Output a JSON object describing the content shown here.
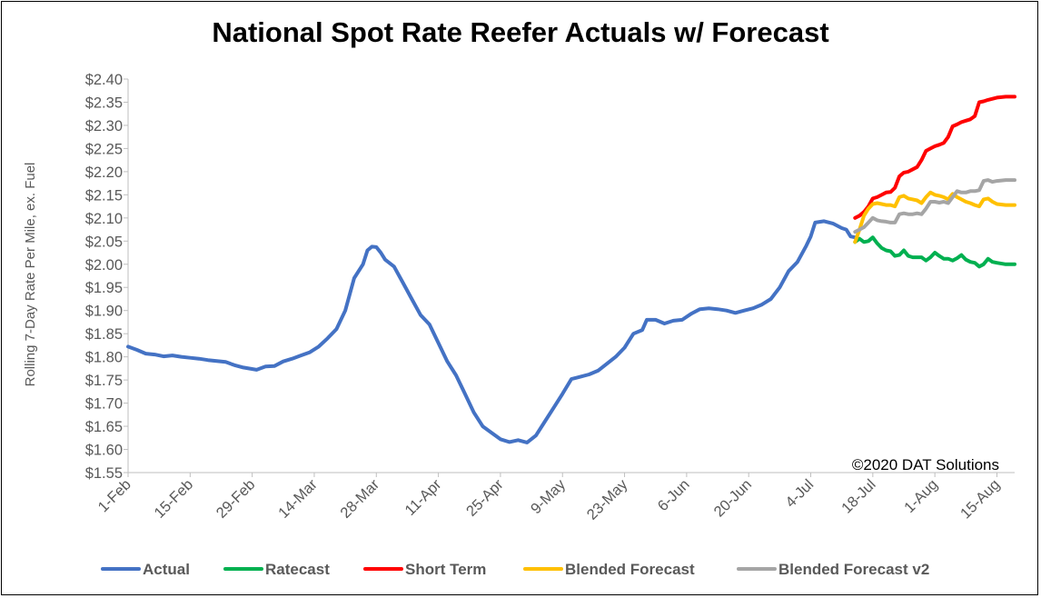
{
  "chart_data": {
    "type": "line",
    "title": "National Spot Rate Reefer Actuals w/ Forecast",
    "ylabel": "Rolling 7-Day Rate Per Mile, ex. Fuel",
    "xlabel": "",
    "ylim": [
      1.55,
      2.4
    ],
    "ytick_step": 0.05,
    "yticks": [
      "$1.55",
      "$1.60",
      "$1.65",
      "$1.70",
      "$1.75",
      "$1.80",
      "$1.85",
      "$1.90",
      "$1.95",
      "$2.00",
      "$2.05",
      "$2.10",
      "$2.15",
      "$2.20",
      "$2.25",
      "$2.30",
      "$2.35",
      "$2.40"
    ],
    "xticks": [
      "1-Feb",
      "15-Feb",
      "29-Feb",
      "14-Mar",
      "28-Mar",
      "11-Apr",
      "25-Apr",
      "9-May",
      "23-May",
      "6-Jun",
      "20-Jun",
      "4-Jul",
      "18-Jul",
      "1-Aug",
      "15-Aug"
    ],
    "xrange": [
      "2020-02-01",
      "2020-08-19"
    ],
    "annotation": "©2020 DAT Solutions",
    "legend_position": "bottom",
    "grid": false,
    "series": [
      {
        "name": "Actual",
        "color": "#4472C4",
        "points": [
          [
            "2020-02-01",
            1.822
          ],
          [
            "2020-02-03",
            1.815
          ],
          [
            "2020-02-05",
            1.807
          ],
          [
            "2020-02-07",
            1.805
          ],
          [
            "2020-02-09",
            1.801
          ],
          [
            "2020-02-11",
            1.803
          ],
          [
            "2020-02-13",
            1.8
          ],
          [
            "2020-02-15",
            1.798
          ],
          [
            "2020-02-17",
            1.796
          ],
          [
            "2020-02-19",
            1.793
          ],
          [
            "2020-02-21",
            1.791
          ],
          [
            "2020-02-23",
            1.789
          ],
          [
            "2020-02-25",
            1.782
          ],
          [
            "2020-02-27",
            1.777
          ],
          [
            "2020-03-01",
            1.772
          ],
          [
            "2020-03-03",
            1.779
          ],
          [
            "2020-03-05",
            1.78
          ],
          [
            "2020-03-07",
            1.79
          ],
          [
            "2020-03-09",
            1.796
          ],
          [
            "2020-03-11",
            1.803
          ],
          [
            "2020-03-13",
            1.81
          ],
          [
            "2020-03-15",
            1.822
          ],
          [
            "2020-03-17",
            1.84
          ],
          [
            "2020-03-19",
            1.86
          ],
          [
            "2020-03-21",
            1.9
          ],
          [
            "2020-03-23",
            1.97
          ],
          [
            "2020-03-25",
            2.0
          ],
          [
            "2020-03-26",
            2.03
          ],
          [
            "2020-03-27",
            2.038
          ],
          [
            "2020-03-28",
            2.037
          ],
          [
            "2020-03-29",
            2.025
          ],
          [
            "2020-03-30",
            2.01
          ],
          [
            "2020-04-01",
            1.995
          ],
          [
            "2020-04-03",
            1.96
          ],
          [
            "2020-04-05",
            1.925
          ],
          [
            "2020-04-07",
            1.89
          ],
          [
            "2020-04-09",
            1.87
          ],
          [
            "2020-04-11",
            1.83
          ],
          [
            "2020-04-13",
            1.79
          ],
          [
            "2020-04-15",
            1.76
          ],
          [
            "2020-04-17",
            1.72
          ],
          [
            "2020-04-19",
            1.68
          ],
          [
            "2020-04-21",
            1.65
          ],
          [
            "2020-04-23",
            1.636
          ],
          [
            "2020-04-25",
            1.622
          ],
          [
            "2020-04-27",
            1.616
          ],
          [
            "2020-04-29",
            1.62
          ],
          [
            "2020-05-01",
            1.615
          ],
          [
            "2020-05-03",
            1.63
          ],
          [
            "2020-05-05",
            1.66
          ],
          [
            "2020-05-07",
            1.69
          ],
          [
            "2020-05-09",
            1.72
          ],
          [
            "2020-05-11",
            1.752
          ],
          [
            "2020-05-13",
            1.757
          ],
          [
            "2020-05-15",
            1.762
          ],
          [
            "2020-05-17",
            1.77
          ],
          [
            "2020-05-19",
            1.785
          ],
          [
            "2020-05-21",
            1.8
          ],
          [
            "2020-05-23",
            1.82
          ],
          [
            "2020-05-25",
            1.85
          ],
          [
            "2020-05-27",
            1.858
          ],
          [
            "2020-05-28",
            1.88
          ],
          [
            "2020-05-30",
            1.88
          ],
          [
            "2020-06-01",
            1.872
          ],
          [
            "2020-06-03",
            1.878
          ],
          [
            "2020-06-05",
            1.88
          ],
          [
            "2020-06-07",
            1.893
          ],
          [
            "2020-06-09",
            1.903
          ],
          [
            "2020-06-11",
            1.905
          ],
          [
            "2020-06-13",
            1.903
          ],
          [
            "2020-06-15",
            1.9
          ],
          [
            "2020-06-17",
            1.895
          ],
          [
            "2020-06-19",
            1.9
          ],
          [
            "2020-06-21",
            1.905
          ],
          [
            "2020-06-23",
            1.913
          ],
          [
            "2020-06-25",
            1.925
          ],
          [
            "2020-06-27",
            1.95
          ],
          [
            "2020-06-29",
            1.985
          ],
          [
            "2020-07-01",
            2.005
          ],
          [
            "2020-07-03",
            2.04
          ],
          [
            "2020-07-04",
            2.06
          ],
          [
            "2020-07-05",
            2.09
          ],
          [
            "2020-07-07",
            2.093
          ],
          [
            "2020-07-09",
            2.088
          ],
          [
            "2020-07-11",
            2.078
          ],
          [
            "2020-07-12",
            2.075
          ],
          [
            "2020-07-13",
            2.06
          ],
          [
            "2020-07-14",
            2.058
          ]
        ]
      },
      {
        "name": "Ratecast",
        "color": "#00B050",
        "points": [
          [
            "2020-07-14",
            2.048
          ],
          [
            "2020-07-15",
            2.055
          ],
          [
            "2020-07-16",
            2.048
          ],
          [
            "2020-07-17",
            2.05
          ],
          [
            "2020-07-18",
            2.058
          ],
          [
            "2020-07-19",
            2.045
          ],
          [
            "2020-07-20",
            2.035
          ],
          [
            "2020-07-21",
            2.03
          ],
          [
            "2020-07-22",
            2.028
          ],
          [
            "2020-07-23",
            2.018
          ],
          [
            "2020-07-24",
            2.02
          ],
          [
            "2020-07-25",
            2.03
          ],
          [
            "2020-07-26",
            2.018
          ],
          [
            "2020-07-27",
            2.015
          ],
          [
            "2020-07-28",
            2.015
          ],
          [
            "2020-07-29",
            2.015
          ],
          [
            "2020-07-30",
            2.008
          ],
          [
            "2020-07-31",
            2.015
          ],
          [
            "2020-08-01",
            2.025
          ],
          [
            "2020-08-02",
            2.018
          ],
          [
            "2020-08-03",
            2.012
          ],
          [
            "2020-08-04",
            2.012
          ],
          [
            "2020-08-05",
            2.008
          ],
          [
            "2020-08-06",
            2.013
          ],
          [
            "2020-08-07",
            2.02
          ],
          [
            "2020-08-08",
            2.01
          ],
          [
            "2020-08-09",
            2.005
          ],
          [
            "2020-08-10",
            2.003
          ],
          [
            "2020-08-11",
            1.995
          ],
          [
            "2020-08-12",
            2.0
          ],
          [
            "2020-08-13",
            2.012
          ],
          [
            "2020-08-14",
            2.005
          ],
          [
            "2020-08-15",
            2.003
          ],
          [
            "2020-08-17",
            2.0
          ],
          [
            "2020-08-19",
            2.0
          ]
        ]
      },
      {
        "name": "Short Term",
        "color": "#FF0000",
        "points": [
          [
            "2020-07-14",
            2.1
          ],
          [
            "2020-07-15",
            2.105
          ],
          [
            "2020-07-16",
            2.113
          ],
          [
            "2020-07-17",
            2.125
          ],
          [
            "2020-07-18",
            2.142
          ],
          [
            "2020-07-19",
            2.145
          ],
          [
            "2020-07-20",
            2.15
          ],
          [
            "2020-07-21",
            2.155
          ],
          [
            "2020-07-22",
            2.156
          ],
          [
            "2020-07-23",
            2.165
          ],
          [
            "2020-07-24",
            2.19
          ],
          [
            "2020-07-25",
            2.198
          ],
          [
            "2020-07-26",
            2.2
          ],
          [
            "2020-07-27",
            2.205
          ],
          [
            "2020-07-28",
            2.21
          ],
          [
            "2020-07-29",
            2.225
          ],
          [
            "2020-07-30",
            2.245
          ],
          [
            "2020-07-31",
            2.25
          ],
          [
            "2020-08-01",
            2.255
          ],
          [
            "2020-08-02",
            2.258
          ],
          [
            "2020-08-03",
            2.262
          ],
          [
            "2020-08-04",
            2.275
          ],
          [
            "2020-08-05",
            2.298
          ],
          [
            "2020-08-06",
            2.302
          ],
          [
            "2020-08-07",
            2.307
          ],
          [
            "2020-08-08",
            2.31
          ],
          [
            "2020-08-09",
            2.313
          ],
          [
            "2020-08-10",
            2.32
          ],
          [
            "2020-08-11",
            2.35
          ],
          [
            "2020-08-12",
            2.352
          ],
          [
            "2020-08-13",
            2.355
          ],
          [
            "2020-08-15",
            2.36
          ],
          [
            "2020-08-17",
            2.362
          ],
          [
            "2020-08-19",
            2.362
          ]
        ]
      },
      {
        "name": "Blended Forecast",
        "color": "#FFC000",
        "points": [
          [
            "2020-07-14",
            2.048
          ],
          [
            "2020-07-15",
            2.075
          ],
          [
            "2020-07-16",
            2.105
          ],
          [
            "2020-07-17",
            2.12
          ],
          [
            "2020-07-18",
            2.13
          ],
          [
            "2020-07-19",
            2.132
          ],
          [
            "2020-07-20",
            2.13
          ],
          [
            "2020-07-21",
            2.128
          ],
          [
            "2020-07-22",
            2.128
          ],
          [
            "2020-07-23",
            2.125
          ],
          [
            "2020-07-24",
            2.145
          ],
          [
            "2020-07-25",
            2.148
          ],
          [
            "2020-07-26",
            2.142
          ],
          [
            "2020-07-27",
            2.14
          ],
          [
            "2020-07-28",
            2.138
          ],
          [
            "2020-07-29",
            2.132
          ],
          [
            "2020-07-30",
            2.145
          ],
          [
            "2020-07-31",
            2.155
          ],
          [
            "2020-08-01",
            2.15
          ],
          [
            "2020-08-02",
            2.148
          ],
          [
            "2020-08-03",
            2.145
          ],
          [
            "2020-08-04",
            2.14
          ],
          [
            "2020-08-05",
            2.152
          ],
          [
            "2020-08-06",
            2.145
          ],
          [
            "2020-08-07",
            2.14
          ],
          [
            "2020-08-08",
            2.135
          ],
          [
            "2020-08-09",
            2.132
          ],
          [
            "2020-08-10",
            2.128
          ],
          [
            "2020-08-11",
            2.125
          ],
          [
            "2020-08-12",
            2.14
          ],
          [
            "2020-08-13",
            2.142
          ],
          [
            "2020-08-14",
            2.135
          ],
          [
            "2020-08-15",
            2.13
          ],
          [
            "2020-08-17",
            2.128
          ],
          [
            "2020-08-19",
            2.128
          ]
        ]
      },
      {
        "name": "Blended Forecast v2",
        "color": "#A5A5A5",
        "points": [
          [
            "2020-07-14",
            2.07
          ],
          [
            "2020-07-15",
            2.075
          ],
          [
            "2020-07-16",
            2.08
          ],
          [
            "2020-07-17",
            2.09
          ],
          [
            "2020-07-18",
            2.1
          ],
          [
            "2020-07-19",
            2.095
          ],
          [
            "2020-07-20",
            2.093
          ],
          [
            "2020-07-21",
            2.092
          ],
          [
            "2020-07-22",
            2.09
          ],
          [
            "2020-07-23",
            2.09
          ],
          [
            "2020-07-24",
            2.108
          ],
          [
            "2020-07-25",
            2.11
          ],
          [
            "2020-07-26",
            2.108
          ],
          [
            "2020-07-27",
            2.108
          ],
          [
            "2020-07-28",
            2.11
          ],
          [
            "2020-07-29",
            2.108
          ],
          [
            "2020-07-30",
            2.12
          ],
          [
            "2020-07-31",
            2.135
          ],
          [
            "2020-08-01",
            2.135
          ],
          [
            "2020-08-02",
            2.133
          ],
          [
            "2020-08-03",
            2.135
          ],
          [
            "2020-08-04",
            2.132
          ],
          [
            "2020-08-05",
            2.145
          ],
          [
            "2020-08-06",
            2.158
          ],
          [
            "2020-08-07",
            2.155
          ],
          [
            "2020-08-08",
            2.155
          ],
          [
            "2020-08-09",
            2.158
          ],
          [
            "2020-08-10",
            2.158
          ],
          [
            "2020-08-11",
            2.16
          ],
          [
            "2020-08-12",
            2.18
          ],
          [
            "2020-08-13",
            2.182
          ],
          [
            "2020-08-14",
            2.178
          ],
          [
            "2020-08-15",
            2.18
          ],
          [
            "2020-08-17",
            2.182
          ],
          [
            "2020-08-19",
            2.182
          ]
        ]
      }
    ]
  }
}
